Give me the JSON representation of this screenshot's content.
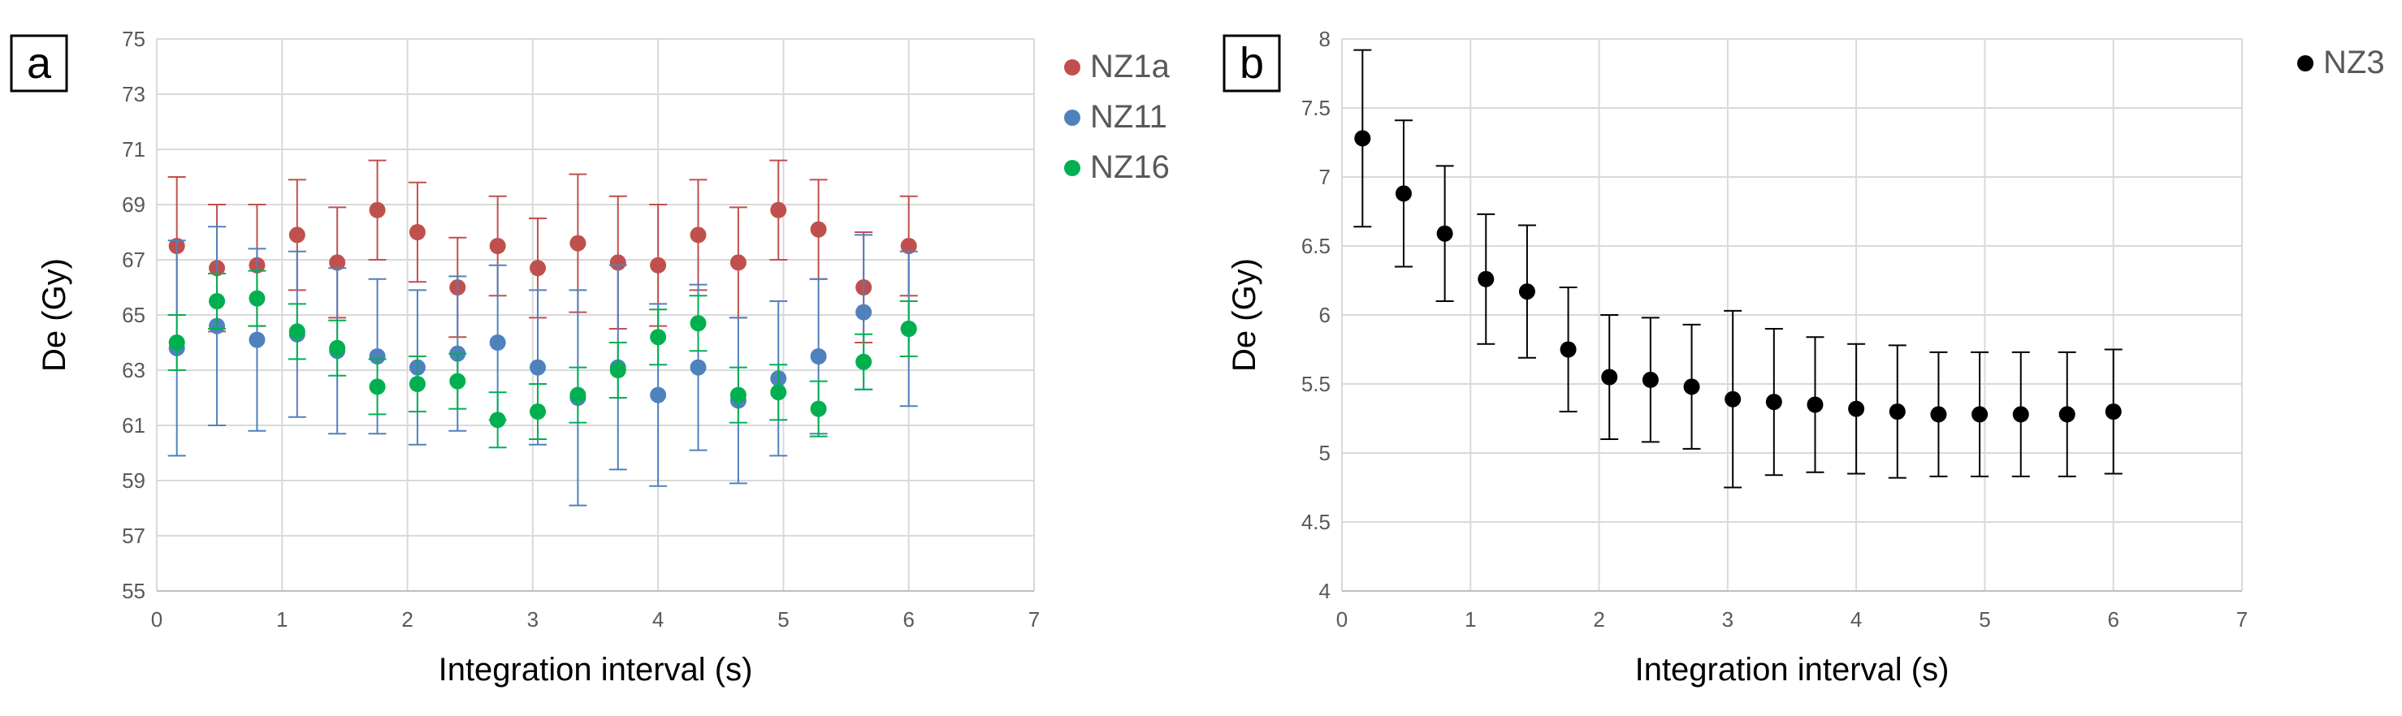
{
  "chart_data": [
    {
      "panel_label": "a",
      "type": "scatter",
      "xlabel": "Integration interval (s)",
      "ylabel": "De (Gy)",
      "xlim": [
        0,
        7
      ],
      "ylim": [
        55,
        75
      ],
      "xticks": [
        "0",
        "1",
        "2",
        "3",
        "4",
        "5",
        "6",
        "7"
      ],
      "yticks": [
        "55",
        "57",
        "59",
        "61",
        "63",
        "65",
        "67",
        "69",
        "71",
        "73",
        "75"
      ],
      "grid": true,
      "error_bars": true,
      "legend_position": "right",
      "x": [
        0.16,
        0.48,
        0.8,
        1.12,
        1.44,
        1.76,
        2.08,
        2.4,
        2.72,
        3.04,
        3.36,
        3.68,
        4.0,
        4.32,
        4.64,
        4.96,
        5.28,
        5.64,
        6.0
      ],
      "series": [
        {
          "name": "NZ1a",
          "color": "#c0504d",
          "values": [
            67.5,
            66.7,
            66.8,
            67.9,
            66.9,
            68.8,
            68.0,
            66.0,
            67.5,
            66.7,
            67.6,
            66.9,
            66.8,
            67.9,
            66.9,
            68.8,
            68.1,
            66.0,
            67.5
          ],
          "errors": [
            2.5,
            2.3,
            2.2,
            2.0,
            2.0,
            1.8,
            1.8,
            1.8,
            1.8,
            1.8,
            2.5,
            2.4,
            2.2,
            2.0,
            2.0,
            1.8,
            1.8,
            2.0,
            1.8
          ]
        },
        {
          "name": "NZ11",
          "color": "#4f81bd",
          "values": [
            63.8,
            64.6,
            64.1,
            64.3,
            63.7,
            63.5,
            63.1,
            63.6,
            64.0,
            63.1,
            62.0,
            63.1,
            62.1,
            63.1,
            61.9,
            62.7,
            63.5,
            65.1,
            64.5
          ],
          "errors": [
            3.9,
            3.6,
            3.3,
            3.0,
            3.0,
            2.8,
            2.8,
            2.8,
            2.8,
            2.8,
            3.9,
            3.7,
            3.3,
            3.0,
            3.0,
            2.8,
            2.8,
            2.8,
            2.8
          ]
        },
        {
          "name": "NZ16",
          "color": "#00b050",
          "values": [
            64.0,
            65.5,
            65.6,
            64.4,
            63.8,
            62.4,
            62.5,
            62.6,
            61.2,
            61.5,
            62.1,
            63.0,
            64.2,
            64.7,
            62.1,
            62.2,
            61.6,
            63.3,
            64.5
          ],
          "errors": [
            1.0,
            1.0,
            1.0,
            1.0,
            1.0,
            1.0,
            1.0,
            1.0,
            1.0,
            1.0,
            1.0,
            1.0,
            1.0,
            1.0,
            1.0,
            1.0,
            1.0,
            1.0,
            1.0
          ]
        }
      ]
    },
    {
      "panel_label": "b",
      "type": "scatter",
      "xlabel": "Integration interval (s)",
      "ylabel": "De (Gy)",
      "xlim": [
        0,
        7
      ],
      "ylim": [
        4,
        8
      ],
      "xticks": [
        "0",
        "1",
        "2",
        "3",
        "4",
        "5",
        "6",
        "7"
      ],
      "yticks": [
        "4",
        "4.5",
        "5",
        "5.5",
        "6",
        "6.5",
        "7",
        "7.5",
        "8"
      ],
      "grid": true,
      "error_bars": true,
      "legend_position": "top-right",
      "x": [
        0.16,
        0.48,
        0.8,
        1.12,
        1.44,
        1.76,
        2.08,
        2.4,
        2.72,
        3.04,
        3.36,
        3.68,
        4.0,
        4.32,
        4.64,
        4.96,
        5.28,
        5.64,
        6.0
      ],
      "series": [
        {
          "name": "NZ3",
          "color": "#000000",
          "values": [
            7.28,
            6.88,
            6.59,
            6.26,
            6.17,
            5.75,
            5.55,
            5.53,
            5.48,
            5.39,
            5.37,
            5.35,
            5.32,
            5.3,
            5.28,
            5.28,
            5.28,
            5.28,
            5.3
          ],
          "errors": [
            0.64,
            0.53,
            0.49,
            0.47,
            0.48,
            0.45,
            0.45,
            0.45,
            0.45,
            0.64,
            0.53,
            0.49,
            0.47,
            0.48,
            0.45,
            0.45,
            0.45,
            0.45,
            0.45
          ]
        }
      ]
    }
  ]
}
